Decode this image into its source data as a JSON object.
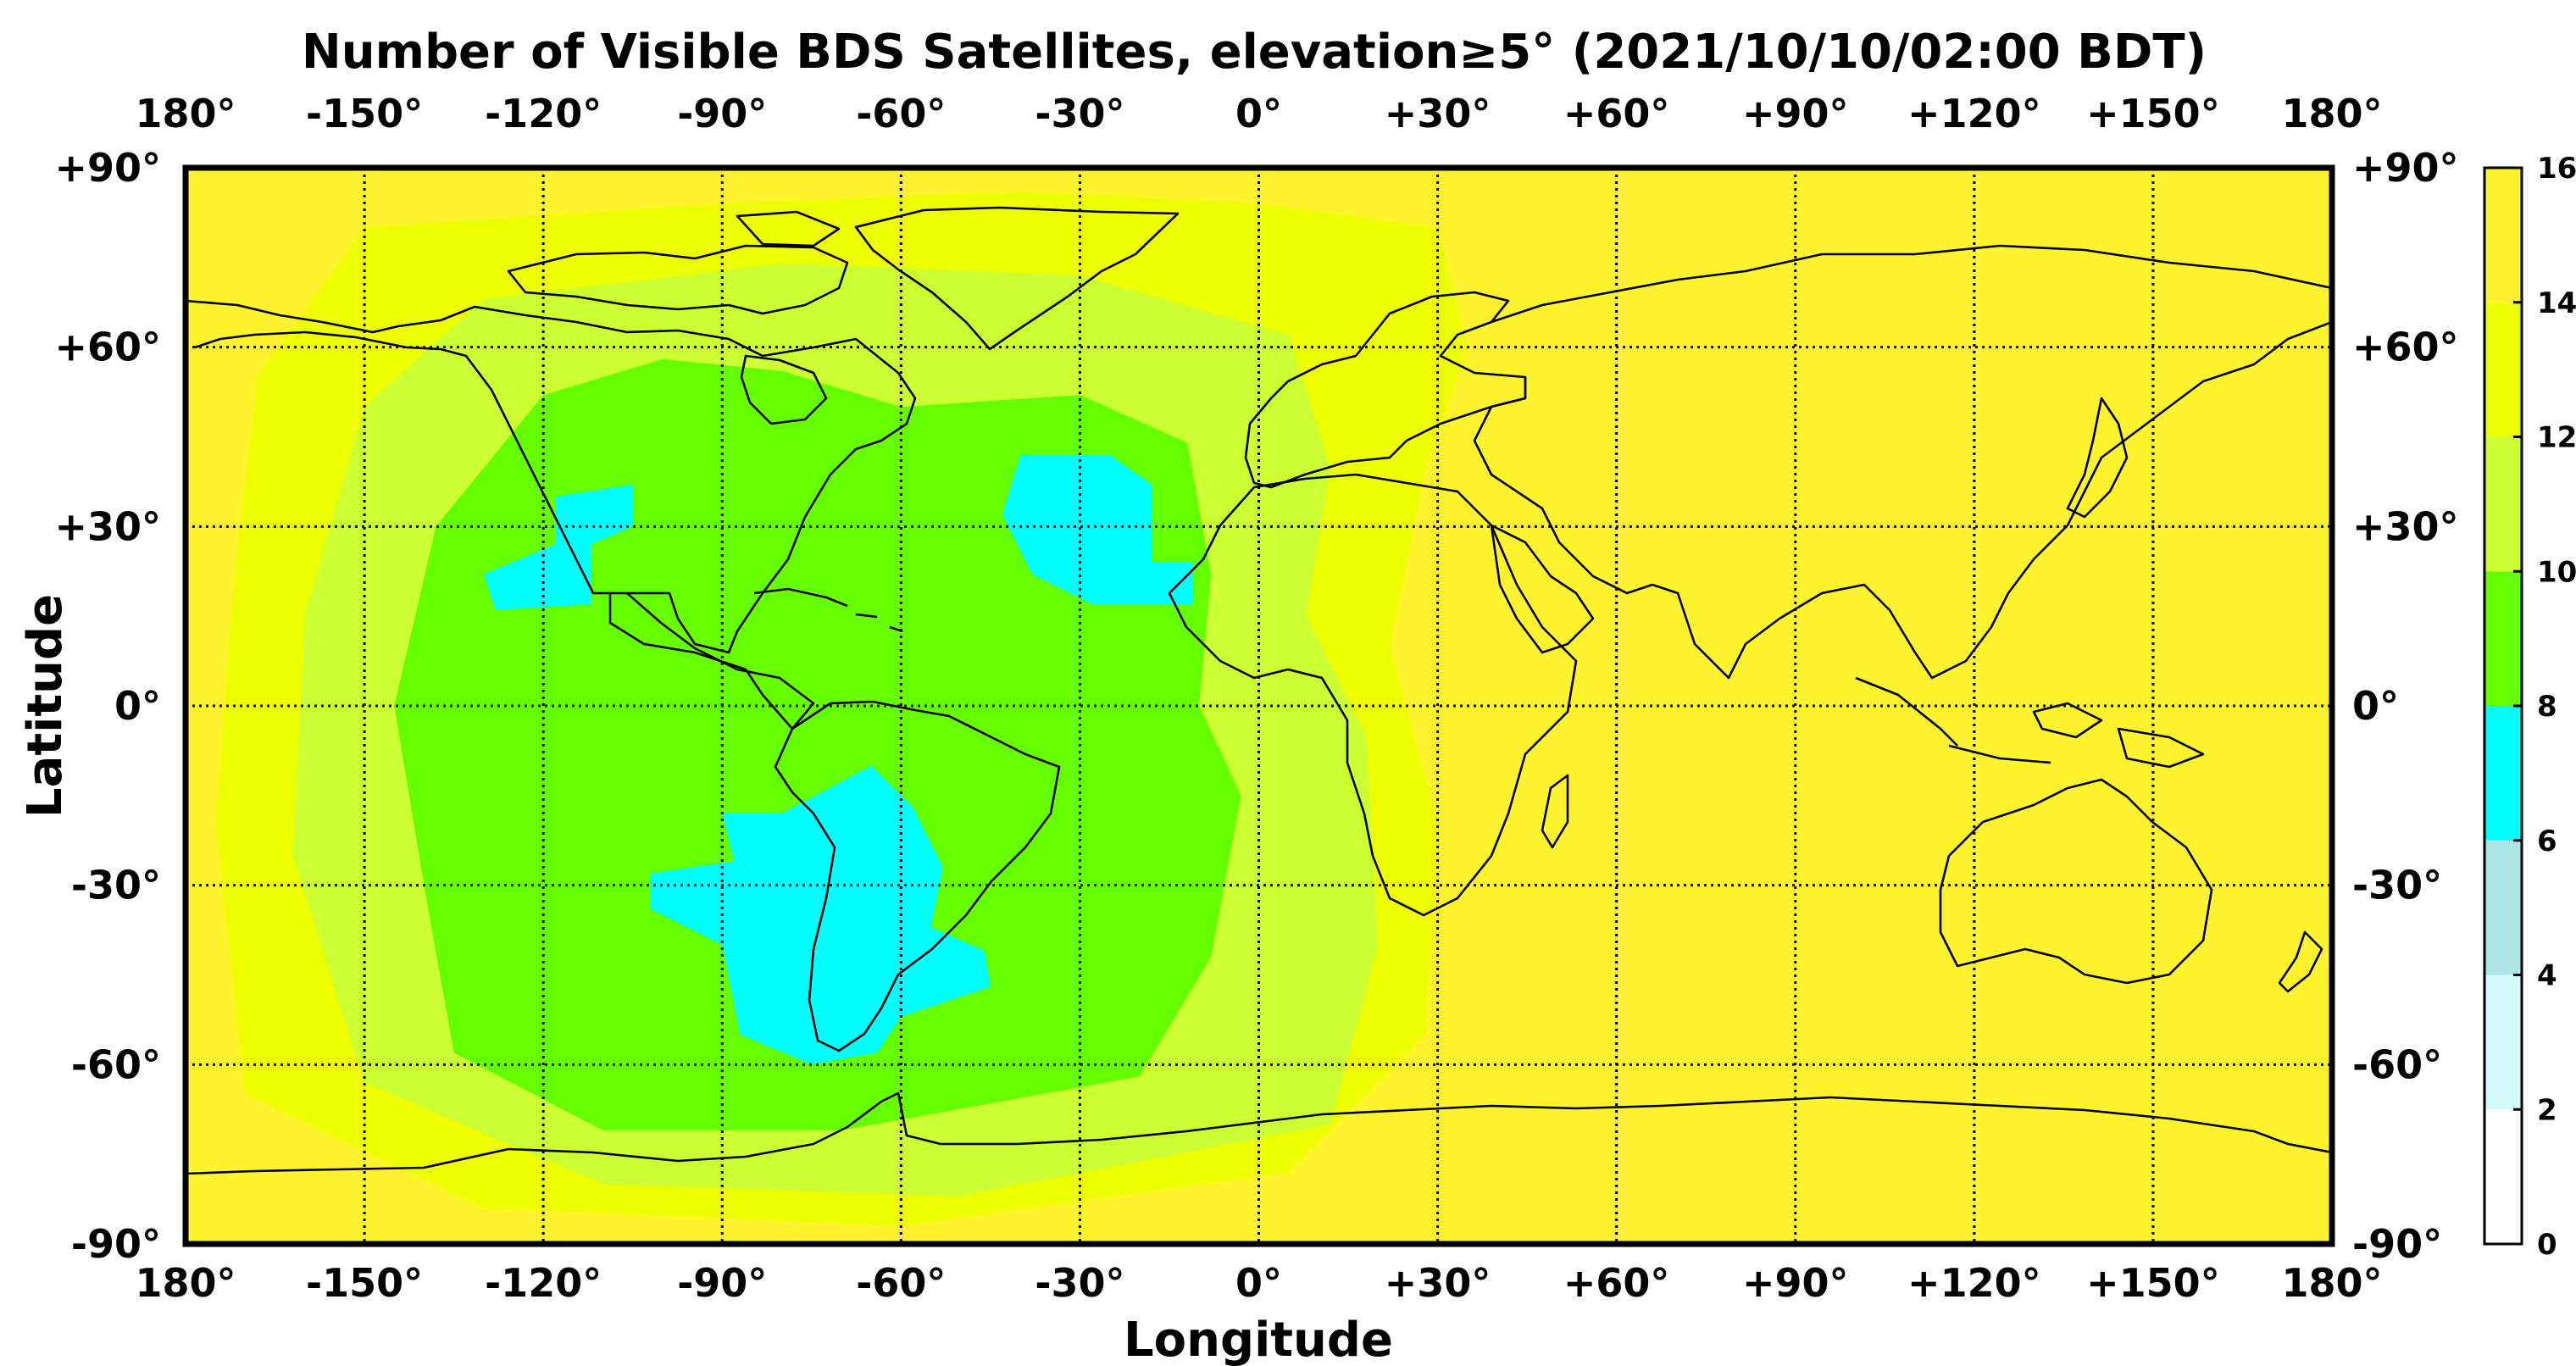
{
  "title": "Number of Visible BDS Satellites, elevation≥5° (2021/10/10/02:00 BDT)",
  "xlabel": "Longitude",
  "ylabel": "Latitude",
  "lon_ticks": [
    {
      "value": -180,
      "label": "180°"
    },
    {
      "value": -150,
      "label": "-150°"
    },
    {
      "value": -120,
      "label": "-120°"
    },
    {
      "value": -90,
      "label": "-90°"
    },
    {
      "value": -60,
      "label": "-60°"
    },
    {
      "value": -30,
      "label": "-30°"
    },
    {
      "value": 0,
      "label": "0°"
    },
    {
      "value": 30,
      "label": "+30°"
    },
    {
      "value": 60,
      "label": "+60°"
    },
    {
      "value": 90,
      "label": "+90°"
    },
    {
      "value": 120,
      "label": "+120°"
    },
    {
      "value": 150,
      "label": "+150°"
    },
    {
      "value": 180,
      "label": "180°"
    }
  ],
  "lat_ticks": [
    {
      "value": 90,
      "label": "+90°"
    },
    {
      "value": 60,
      "label": "+60°"
    },
    {
      "value": 30,
      "label": "+30°"
    },
    {
      "value": 0,
      "label": "0°"
    },
    {
      "value": -30,
      "label": "-30°"
    },
    {
      "value": -60,
      "label": "-60°"
    },
    {
      "value": -90,
      "label": "-90°"
    }
  ],
  "colorbar": {
    "ticks": [
      "0",
      "2",
      "4",
      "6",
      "8",
      "10",
      "12",
      "14",
      "16"
    ],
    "bins": [
      {
        "from": 0,
        "to": 2,
        "color": "#ffffff"
      },
      {
        "from": 2,
        "to": 4,
        "color": "#d4fbfb"
      },
      {
        "from": 4,
        "to": 6,
        "color": "#aee5e5"
      },
      {
        "from": 6,
        "to": 8,
        "color": "#00ffff"
      },
      {
        "from": 8,
        "to": 10,
        "color": "#66ff00"
      },
      {
        "from": 10,
        "to": 12,
        "color": "#ccff33"
      },
      {
        "from": 12,
        "to": 14,
        "color": "#eeff00"
      },
      {
        "from": 14,
        "to": 16,
        "color": "#fff22e"
      }
    ]
  },
  "chart_data": {
    "type": "heatmap",
    "title": "Number of Visible BDS Satellites, elevation≥5° (2021/10/10/02:00 BDT)",
    "xlabel": "Longitude",
    "ylabel": "Latitude",
    "xlim": [
      -180,
      180
    ],
    "ylim": [
      -90,
      90
    ],
    "grid": true,
    "colorbar_range": [
      0,
      16
    ],
    "colorbar_position": "right",
    "regions": [
      {
        "name": "background",
        "value": 15,
        "polygon": [
          [
            -180,
            90
          ],
          [
            180,
            90
          ],
          [
            180,
            -90
          ],
          [
            -180,
            -90
          ]
        ]
      },
      {
        "name": "western-ring-13",
        "value": 13,
        "polygon": [
          [
            -150,
            80
          ],
          [
            -90,
            84
          ],
          [
            -40,
            86
          ],
          [
            0,
            84
          ],
          [
            30,
            80
          ],
          [
            35,
            60
          ],
          [
            28,
            40
          ],
          [
            22,
            10
          ],
          [
            30,
            -20
          ],
          [
            28,
            -55
          ],
          [
            5,
            -78
          ],
          [
            -60,
            -87
          ],
          [
            -130,
            -84
          ],
          [
            -170,
            -65
          ],
          [
            -175,
            -20
          ],
          [
            -172,
            20
          ],
          [
            -168,
            55
          ]
        ]
      },
      {
        "name": "western-ring-11",
        "value": 11,
        "polygon": [
          [
            -130,
            68
          ],
          [
            -80,
            74
          ],
          [
            -30,
            72
          ],
          [
            5,
            62
          ],
          [
            12,
            40
          ],
          [
            8,
            15
          ],
          [
            18,
            -5
          ],
          [
            20,
            -40
          ],
          [
            12,
            -70
          ],
          [
            -50,
            -82
          ],
          [
            -110,
            -80
          ],
          [
            -150,
            -63
          ],
          [
            -162,
            -25
          ],
          [
            -160,
            15
          ],
          [
            -150,
            50
          ]
        ]
      },
      {
        "name": "western-core-9",
        "value": 9,
        "polygon": [
          [
            -120,
            52
          ],
          [
            -100,
            58
          ],
          [
            -80,
            56
          ],
          [
            -60,
            50
          ],
          [
            -30,
            52
          ],
          [
            -12,
            44
          ],
          [
            -8,
            22
          ],
          [
            -10,
            0
          ],
          [
            -3,
            -15
          ],
          [
            -8,
            -42
          ],
          [
            -20,
            -62
          ],
          [
            -70,
            -71
          ],
          [
            -110,
            -71
          ],
          [
            -135,
            -58
          ],
          [
            -140,
            -30
          ],
          [
            -145,
            0
          ],
          [
            -138,
            30
          ]
        ]
      },
      {
        "name": "cyan-north-pacific",
        "value": 7,
        "polygon": [
          [
            -118,
            35
          ],
          [
            -105,
            37
          ],
          [
            -105,
            30
          ],
          [
            -112,
            27
          ],
          [
            -112,
            17
          ],
          [
            -128,
            16
          ],
          [
            -130,
            22
          ],
          [
            -118,
            27
          ]
        ]
      },
      {
        "name": "cyan-north-atlantic",
        "value": 7,
        "polygon": [
          [
            -40,
            42
          ],
          [
            -25,
            42
          ],
          [
            -18,
            37
          ],
          [
            -18,
            24
          ],
          [
            -11,
            24
          ],
          [
            -11,
            17
          ],
          [
            -28,
            17
          ],
          [
            -38,
            22
          ],
          [
            -43,
            32
          ]
        ]
      },
      {
        "name": "cyan-south-america",
        "value": 7,
        "polygon": [
          [
            -80,
            -18
          ],
          [
            -65,
            -10
          ],
          [
            -58,
            -17
          ],
          [
            -53,
            -27
          ],
          [
            -55,
            -37
          ],
          [
            -46,
            -41
          ],
          [
            -45,
            -47
          ],
          [
            -60,
            -52
          ],
          [
            -64,
            -58
          ],
          [
            -75,
            -60
          ],
          [
            -87,
            -55
          ],
          [
            -90,
            -40
          ],
          [
            -102,
            -34
          ],
          [
            -102,
            -28
          ],
          [
            -88,
            -26
          ],
          [
            -90,
            -18
          ]
        ]
      }
    ]
  }
}
